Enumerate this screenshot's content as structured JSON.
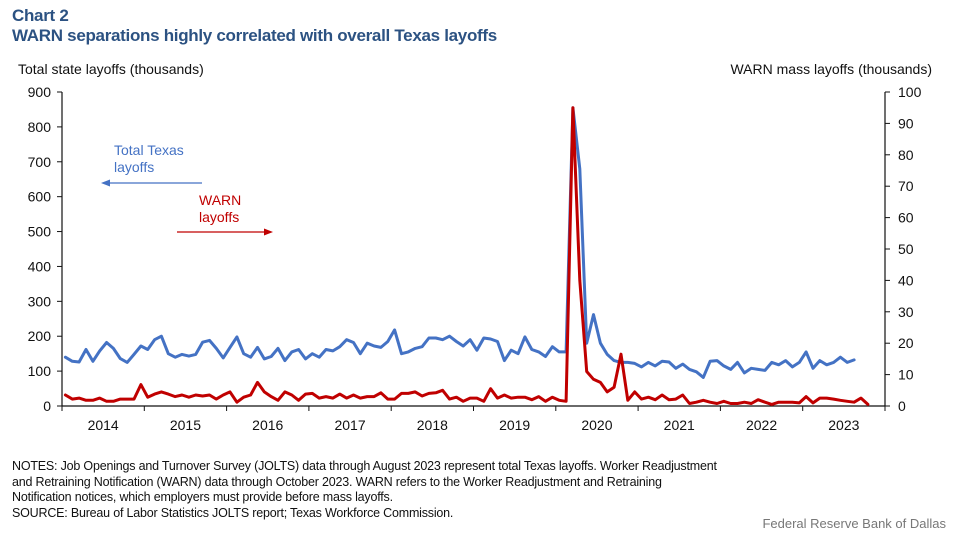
{
  "header": {
    "chart_number": "Chart 2",
    "title": "WARN separations highly correlated with overall Texas layoffs"
  },
  "notes": [
    "NOTES: Job Openings and Turnover Survey (JOLTS) data through August 2023 represent total Texas layoffs. Worker Readjustment",
    "and Retraining Notification (WARN) data through October 2023. WARN refers to the Worker Readjustment and Retraining",
    "Notification notices, which employers must provide before mass layoffs.",
    "SOURCE: Bureau of Labor Statistics JOLTS report; Texas Workforce Commission."
  ],
  "credit": "Federal Reserve Bank of Dallas",
  "chart_data": {
    "type": "line",
    "title": "WARN separations highly correlated with overall Texas layoffs",
    "ylabel_left": "Total state layoffs (thousands)",
    "ylabel_right": "WARN mass layoffs (thousands)",
    "ylim_left": [
      0,
      900
    ],
    "ylim_right": [
      0,
      100
    ],
    "yticks_left": [
      "0",
      "100",
      "200",
      "300",
      "400",
      "500",
      "600",
      "700",
      "800",
      "900"
    ],
    "yticks_right": [
      "0",
      "10",
      "20",
      "30",
      "40",
      "50",
      "60",
      "70",
      "80",
      "90",
      "100"
    ],
    "x_start": "2014-01",
    "x_frequency": "monthly",
    "xticks": [
      "2014",
      "2015",
      "2016",
      "2017",
      "2018",
      "2019",
      "2020",
      "2021",
      "2022",
      "2023"
    ],
    "grid": false,
    "annotations": [
      {
        "text_lines": [
          "Total Texas",
          "layoffs"
        ],
        "arrow": "left",
        "color": "#4472c4"
      },
      {
        "text_lines": [
          "WARN",
          "layoffs"
        ],
        "arrow": "right",
        "color": "#c00000"
      }
    ],
    "series": [
      {
        "name": "Total Texas layoffs",
        "axis": "left",
        "color": "#4472c4",
        "end": "2023-08",
        "values": [
          140,
          128,
          126,
          162,
          128,
          158,
          182,
          165,
          136,
          125,
          148,
          172,
          162,
          190,
          200,
          150,
          140,
          148,
          143,
          148,
          183,
          188,
          165,
          138,
          168,
          198,
          150,
          140,
          168,
          135,
          142,
          165,
          130,
          155,
          162,
          135,
          150,
          140,
          162,
          158,
          170,
          190,
          182,
          150,
          180,
          172,
          168,
          185,
          218,
          150,
          155,
          165,
          170,
          195,
          195,
          190,
          200,
          185,
          172,
          190,
          160,
          195,
          192,
          185,
          130,
          160,
          150,
          198,
          162,
          155,
          142,
          170,
          155,
          155,
          855,
          680,
          180,
          262,
          180,
          148,
          130,
          125,
          125,
          122,
          112,
          125,
          115,
          128,
          126,
          108,
          120,
          105,
          98,
          82,
          128,
          130,
          115,
          105,
          125,
          95,
          108,
          105,
          102,
          125,
          118,
          130,
          112,
          125,
          155,
          108,
          130,
          118,
          125,
          140,
          125,
          132
        ]
      },
      {
        "name": "WARN layoffs",
        "axis": "right",
        "color": "#c00000",
        "end": "2023-10",
        "values": [
          3.5,
          2.2,
          2.5,
          1.8,
          1.8,
          2.5,
          1.5,
          1.5,
          2.2,
          2.2,
          2.2,
          6.8,
          2.8,
          3.8,
          4.5,
          3.8,
          3.0,
          3.5,
          2.8,
          3.5,
          3.2,
          3.5,
          2.2,
          3.5,
          4.5,
          1.2,
          2.8,
          3.5,
          7.5,
          4.5,
          3.0,
          1.8,
          4.5,
          3.5,
          1.8,
          3.8,
          4.0,
          2.5,
          3.0,
          2.5,
          3.8,
          2.5,
          3.5,
          2.5,
          3.0,
          3.0,
          4.2,
          2.2,
          2.2,
          4.0,
          4.0,
          4.5,
          3.2,
          4.0,
          4.2,
          5.0,
          2.2,
          2.8,
          1.5,
          2.5,
          2.5,
          1.5,
          5.5,
          2.5,
          3.5,
          2.5,
          2.8,
          2.8,
          2.0,
          3.0,
          1.5,
          2.8,
          1.8,
          1.5,
          95,
          40,
          11,
          8.5,
          7.5,
          4.5,
          6.0,
          16.5,
          1.8,
          4.5,
          2.2,
          2.8,
          2.0,
          3.5,
          2.0,
          2.2,
          3.5,
          0.8,
          1.2,
          1.8,
          1.2,
          0.8,
          1.5,
          0.8,
          0.8,
          1.2,
          0.8,
          2.0,
          1.2,
          0.5,
          1.2,
          1.2,
          1.2,
          1.0,
          3.0,
          1.0,
          2.5,
          2.5,
          2.2,
          1.8,
          1.5,
          1.2,
          2.5,
          0.5
        ]
      }
    ]
  }
}
